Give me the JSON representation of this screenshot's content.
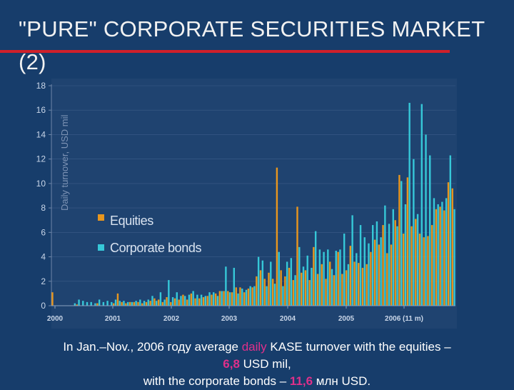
{
  "title": "\"PURE\" CORPORATE SECURITIES MARKET (2)",
  "caption": {
    "line1_prefix": "In Jan.–Nov., 2006 году average ",
    "line1_highlight": "daily",
    "line1_suffix": " KASE turnover with the equities –",
    "line2_value": "6,8",
    "line2_suffix": " USD mil,",
    "line3_prefix": "with the corporate bonds – ",
    "line3_value": "11,6",
    "line3_suffix": " млн USD."
  },
  "colors": {
    "equities": "#e8961e",
    "bonds": "#36c8d8",
    "highlight": "#e0308a",
    "title_rule": "#d0202a"
  },
  "chart_data": {
    "type": "bar",
    "ylabel": "Daily turnover, USD mil",
    "ylim": [
      0,
      18
    ],
    "yticks": [
      "0",
      "2",
      "4",
      "6",
      "8",
      "10",
      "12",
      "14",
      "16",
      "18"
    ],
    "x_ticks": [
      "2000",
      "2001",
      "2002",
      "2003",
      "2004",
      "2005",
      "2006 (11 m)"
    ],
    "legend": {
      "position": "center-left",
      "entries": [
        "Equities",
        "Corporate bonds"
      ]
    },
    "series": [
      {
        "name": "Equities",
        "values": [
          1.1,
          0,
          0,
          0,
          0,
          0,
          0.1,
          0,
          0,
          0,
          0,
          0.2,
          0,
          0,
          0,
          0.2,
          1,
          0.3,
          0.2,
          0.3,
          0.3,
          0.3,
          0.2,
          0.3,
          0.4,
          0.6,
          0.5,
          0.3,
          0.7,
          0.3,
          0.6,
          0.5,
          0.9,
          0.5,
          1,
          0.6,
          0.6,
          0.7,
          0.8,
          0.9,
          1,
          1.2,
          1.2,
          1.2,
          1.1,
          1.5,
          1.5,
          1.1,
          1.4,
          1.5,
          2.4,
          2.9,
          2.2,
          2.7,
          2.2,
          11.3,
          2.9,
          2.4,
          3.1,
          2.1,
          8.1,
          2.7,
          2.9,
          2.1,
          4.8,
          2.6,
          3.4,
          2.2,
          3.6,
          2.5,
          4.4,
          2.6,
          2.9,
          4.9,
          3.6,
          3.5,
          3.1,
          3.4,
          4.4,
          5.4,
          5,
          6.6,
          4.3,
          5,
          7,
          10.7,
          5.9,
          10.5,
          6.5,
          7.1,
          5.9,
          5.6,
          5.7,
          6.6,
          7.9,
          8.1,
          7.8,
          10.1,
          9.6
        ]
      },
      {
        "name": "Corporate bonds",
        "values": [
          0,
          0,
          0,
          0,
          0,
          0.2,
          0.5,
          0.4,
          0.3,
          0.3,
          0.2,
          0.5,
          0.3,
          0.4,
          0.3,
          0.5,
          0.4,
          0.4,
          0.3,
          0.3,
          0.4,
          0.5,
          0.4,
          0.5,
          0.8,
          0.4,
          1.1,
          0.5,
          2.1,
          0.7,
          1.1,
          0.8,
          0.8,
          0.9,
          1.2,
          0.9,
          0.9,
          0.8,
          1.1,
          1.1,
          0.8,
          1.2,
          3.2,
          1.1,
          3.1,
          1,
          1.4,
          1.3,
          1.6,
          1.6,
          4,
          3.7,
          1.6,
          3.6,
          1.8,
          4.4,
          1.6,
          3.6,
          3.9,
          2.5,
          4.8,
          3.2,
          4.1,
          3.1,
          6.1,
          4.6,
          4.4,
          4.6,
          3,
          4.5,
          4.6,
          5.9,
          3.4,
          7.4,
          4.3,
          6.6,
          5.6,
          5.1,
          6.6,
          6.9,
          5.6,
          8.2,
          6.7,
          7.9,
          6.5,
          10.2,
          8.3,
          16.6,
          12,
          7.5,
          16.5,
          14,
          12.3,
          8.8,
          8.3,
          8.5,
          8.8,
          12.3,
          7.9
        ]
      }
    ]
  }
}
